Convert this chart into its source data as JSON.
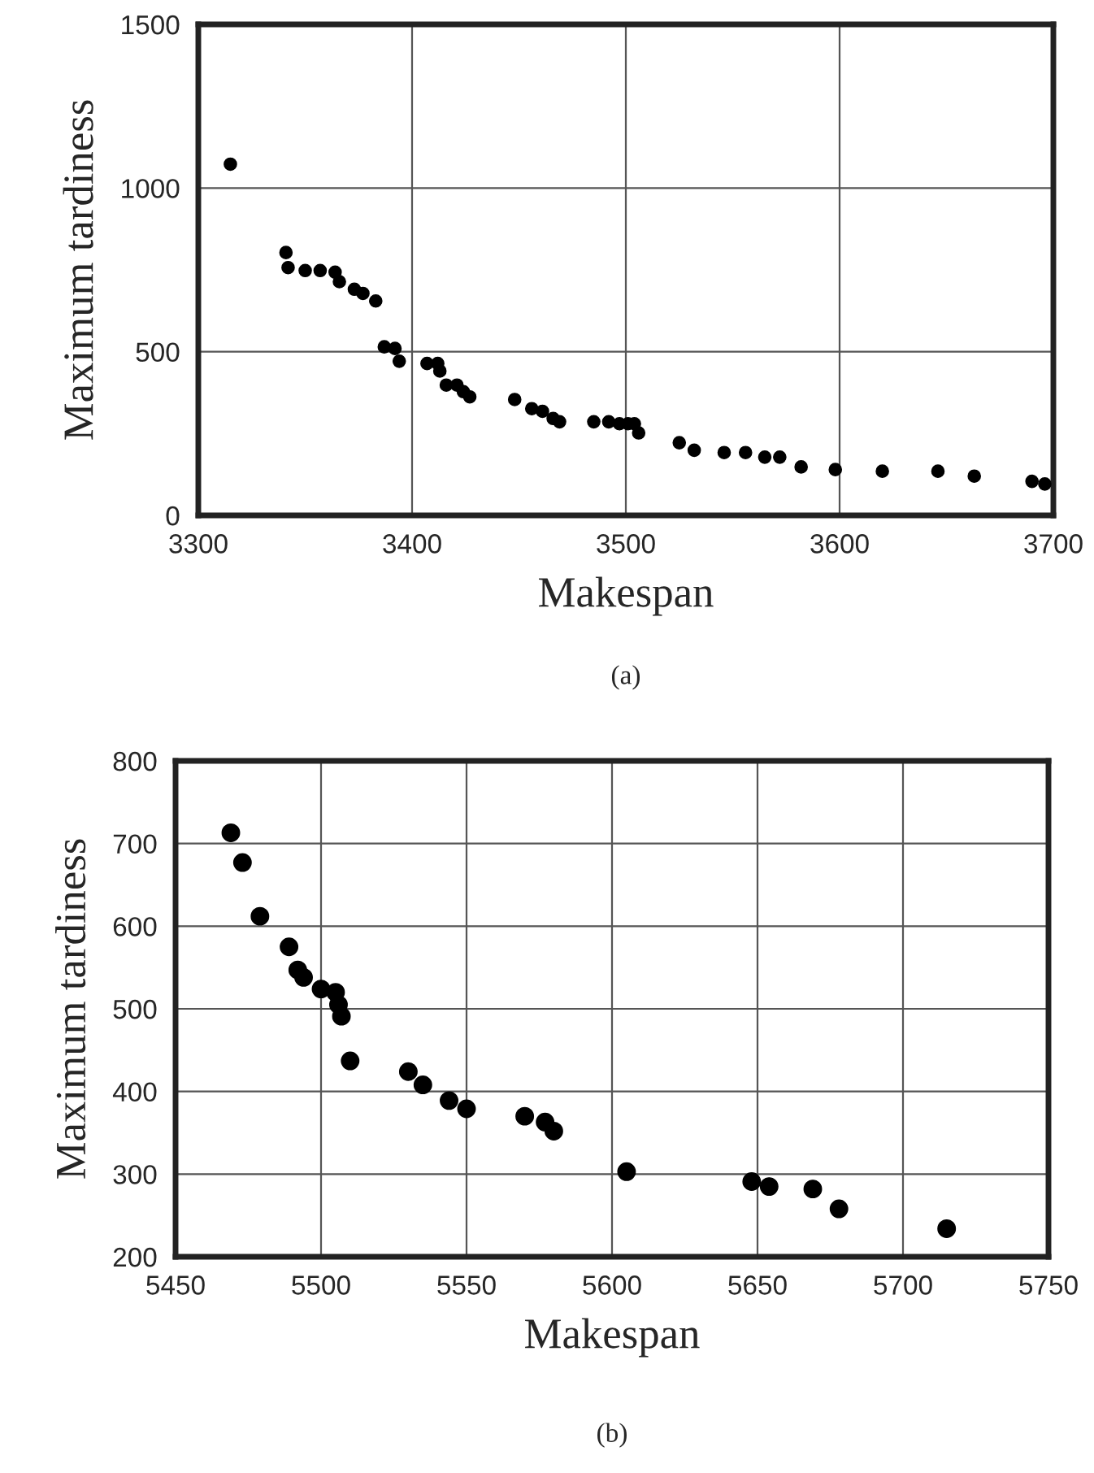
{
  "chart_data": [
    {
      "type": "scatter",
      "xlabel": "Makespan",
      "ylabel": "Maximum tardiness",
      "annotations": [
        "(a)"
      ],
      "xlim": [
        3300,
        3700
      ],
      "ylim": [
        0,
        1500
      ],
      "xticks": [
        3300,
        3400,
        3500,
        3600,
        3700
      ],
      "yticks": [
        0,
        500,
        1000,
        1500
      ],
      "grid": true,
      "marker": "circle",
      "series": [
        {
          "color": "#000000",
          "x": [
            3315,
            3341,
            3342,
            3350,
            3357,
            3364,
            3366,
            3373,
            3377,
            3383,
            3387,
            3392,
            3394,
            3407,
            3412,
            3413,
            3416,
            3421,
            3424,
            3427,
            3448,
            3456,
            3461,
            3466,
            3469,
            3485,
            3492,
            3497,
            3501,
            3504,
            3506,
            3525,
            3532,
            3546,
            3556,
            3565,
            3572,
            3582,
            3598,
            3620,
            3646,
            3663,
            3690,
            3696
          ],
          "values": [
            1073,
            803,
            757,
            748,
            748,
            743,
            714,
            691,
            678,
            655,
            515,
            510,
            471,
            464,
            464,
            441,
            398,
            398,
            378,
            362,
            354,
            326,
            318,
            296,
            286,
            286,
            286,
            280,
            280,
            280,
            252,
            222,
            199,
            192,
            192,
            178,
            178,
            148,
            140,
            135,
            135,
            120,
            104,
            96
          ]
        }
      ]
    },
    {
      "type": "scatter",
      "xlabel": "Makespan",
      "ylabel": "Maximum tardiness",
      "annotations": [
        "(b)"
      ],
      "xlim": [
        5450,
        5750
      ],
      "ylim": [
        200,
        800
      ],
      "xticks": [
        5450,
        5500,
        5550,
        5600,
        5650,
        5700,
        5750
      ],
      "yticks": [
        200,
        300,
        400,
        500,
        600,
        700,
        800
      ],
      "grid": true,
      "marker": "circle",
      "series": [
        {
          "color": "#000000",
          "x": [
            5469,
            5473,
            5479,
            5489,
            5492,
            5494,
            5500,
            5505,
            5506,
            5507,
            5510,
            5530,
            5535,
            5544,
            5550,
            5570,
            5577,
            5580,
            5605,
            5648,
            5654,
            5669,
            5678,
            5715
          ],
          "values": [
            713,
            677,
            612,
            575,
            547,
            538,
            524,
            520,
            505,
            491,
            437,
            424,
            408,
            389,
            379,
            370,
            363,
            352,
            303,
            291,
            285,
            282,
            258,
            234
          ]
        }
      ]
    }
  ]
}
